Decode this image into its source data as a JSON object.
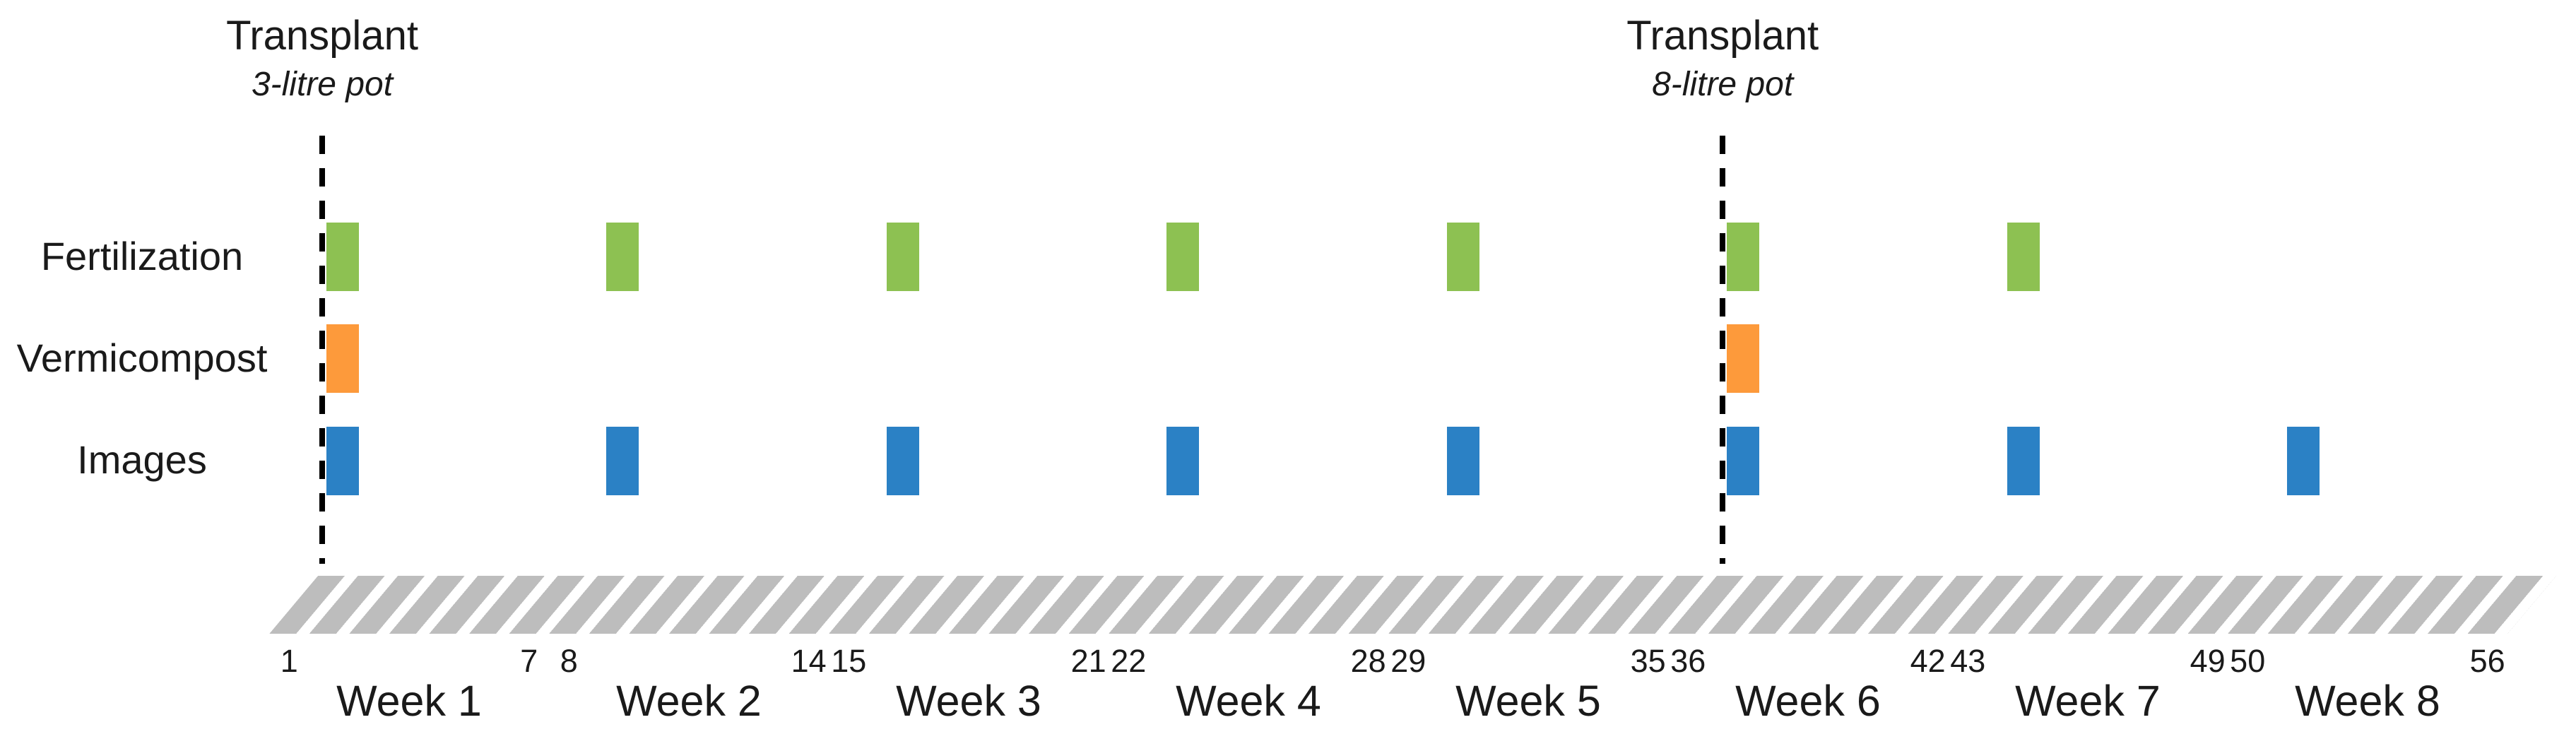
{
  "annotations": [
    {
      "title": "Transplant",
      "subtitle": "3-litre pot",
      "week": 1
    },
    {
      "title": "Transplant",
      "subtitle": "8-litre pot",
      "week": 6
    }
  ],
  "rows": [
    {
      "label": "Fertilization",
      "color": "#8DC152",
      "event_weeks": [
        1,
        2,
        3,
        4,
        5,
        6,
        7
      ]
    },
    {
      "label": "Vermicompost",
      "color": "#FD9A3B",
      "event_weeks": [
        1,
        6
      ]
    },
    {
      "label": "Images",
      "color": "#2B81C5",
      "event_weeks": [
        1,
        2,
        3,
        4,
        5,
        6,
        7,
        8
      ]
    }
  ],
  "timeline": {
    "day_tick_labels": [
      1,
      7,
      8,
      14,
      15,
      21,
      22,
      28,
      29,
      35,
      36,
      42,
      43,
      49,
      50,
      56
    ],
    "week_labels": [
      "Week 1",
      "Week 2",
      "Week 3",
      "Week 4",
      "Week 5",
      "Week 6",
      "Week 7",
      "Week 8"
    ],
    "total_days": 56,
    "days_per_week": 7
  },
  "colors": {
    "fertilization_bar": "#8DC152",
    "vermicompost_bar": "#FD9A3B",
    "images_bar": "#2B81C5",
    "timeline_stripe": "#BDBDBD",
    "stripe_gap": "#FFFFFF",
    "dashed_line": "#000000",
    "text": "#1A1A1A"
  }
}
